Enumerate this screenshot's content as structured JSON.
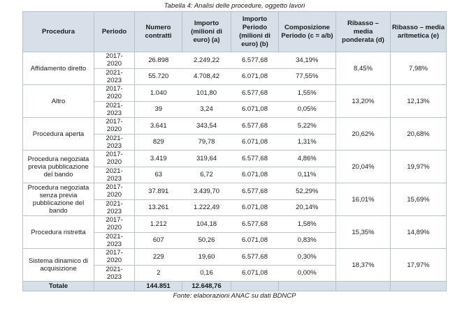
{
  "caption": "Tabella 4: Analisi delle procedure, oggetto lavori",
  "source": "Fonte: elaborazioni ANAC su dati BDNCP",
  "headers": {
    "procedura": "Procedura",
    "periodo": "Periodo",
    "numero": "Numero contratti",
    "importo": "Importo (milioni di euro) (a)",
    "importo_periodo": "Importo Periodo (milioni di euro) (b)",
    "composizione": "Composizione Periodo (c = a/b)",
    "ribasso_pond": "Ribasso – media ponderata (d)",
    "ribasso_arit": "Ribasso – media aritmetica (e)"
  },
  "groups": [
    {
      "name": "Affidamento diretto",
      "rows": [
        {
          "periodo": "2017-\n2020",
          "numero": "26.898",
          "importo": "2.249,22",
          "importo_periodo": "6.577,68",
          "composizione": "34,19%"
        },
        {
          "periodo": "2021-\n2023",
          "numero": "55.720",
          "importo": "4.708,42",
          "importo_periodo": "6.071,08",
          "composizione": "77,55%"
        }
      ],
      "ribasso_pond": "8,45%",
      "ribasso_arit": "7,98%"
    },
    {
      "name": "Altro",
      "rows": [
        {
          "periodo": "2017-\n2020",
          "numero": "1.040",
          "importo": "101,80",
          "importo_periodo": "6.577,68",
          "composizione": "1,55%"
        },
        {
          "periodo": "2021-\n2023",
          "numero": "39",
          "importo": "3,24",
          "importo_periodo": "6.071,08",
          "composizione": "0,05%"
        }
      ],
      "ribasso_pond": "13,20%",
      "ribasso_arit": "12,13%"
    },
    {
      "name": "Procedura aperta",
      "rows": [
        {
          "periodo": "2017-\n2020",
          "numero": "3.641",
          "importo": "343,54",
          "importo_periodo": "6.577,68",
          "composizione": "5,22%"
        },
        {
          "periodo": "2021-\n2023",
          "numero": "829",
          "importo": "79,78",
          "importo_periodo": "6.071,08",
          "composizione": "1,31%"
        }
      ],
      "ribasso_pond": "20,62%",
      "ribasso_arit": "20,68%"
    },
    {
      "name": "Procedura negoziata previa pubblicazione del bando",
      "rows": [
        {
          "periodo": "2017-\n2020",
          "numero": "3.419",
          "importo": "319,64",
          "importo_periodo": "6.577,68",
          "composizione": "4,86%"
        },
        {
          "periodo": "2021-\n2023",
          "numero": "63",
          "importo": "6,72",
          "importo_periodo": "6.071,08",
          "composizione": "0,11%"
        }
      ],
      "ribasso_pond": "20,04%",
      "ribasso_arit": "19,97%"
    },
    {
      "name": "Procedura negoziata senza previa pubblicazione del bando",
      "rows": [
        {
          "periodo": "2017-\n2020",
          "numero": "37.891",
          "importo": "3.439,70",
          "importo_periodo": "6.577,68",
          "composizione": "52,29%"
        },
        {
          "periodo": "2021-\n2023",
          "numero": "13.261",
          "importo": "1.222,49",
          "importo_periodo": "6.071,08",
          "composizione": "20,14%"
        }
      ],
      "ribasso_pond": "16,01%",
      "ribasso_arit": "15,69%"
    },
    {
      "name": "Procedura ristretta",
      "rows": [
        {
          "periodo": "2017-\n2020",
          "numero": "1.212",
          "importo": "104,18",
          "importo_periodo": "6.577,68",
          "composizione": "1,58%"
        },
        {
          "periodo": "2021-\n2023",
          "numero": "607",
          "importo": "50,26",
          "importo_periodo": "6.071,08",
          "composizione": "0,83%"
        }
      ],
      "ribasso_pond": "15,35%",
      "ribasso_arit": "14,89%"
    },
    {
      "name": "Sistema dinamico di acquisizione",
      "rows": [
        {
          "periodo": "2017-\n2020",
          "numero": "229",
          "importo": "19,60",
          "importo_periodo": "6.577,68",
          "composizione": "0,30%"
        },
        {
          "periodo": "2021-\n2023",
          "numero": "2",
          "importo": "0,16",
          "importo_periodo": "6.071,08",
          "composizione": "0,00%"
        }
      ],
      "ribasso_pond": "18,37%",
      "ribasso_arit": "17,97%"
    }
  ],
  "totale": {
    "label": "Totale",
    "numero": "144.851",
    "importo": "12.648,76"
  }
}
